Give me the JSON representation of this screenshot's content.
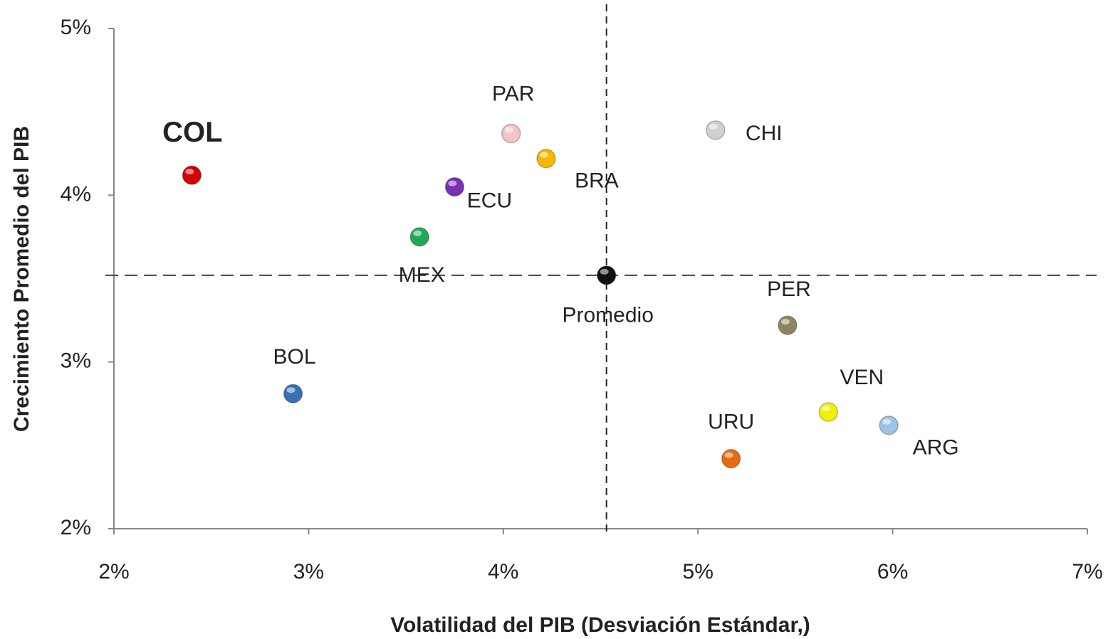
{
  "chart_data": {
    "type": "scatter",
    "xlabel": "Volatilidad del PIB (Desviación Estándar,)",
    "ylabel": "Crecimiento Promedio del PIB",
    "xlim": [
      2,
      7
    ],
    "ylim": [
      2,
      5
    ],
    "xticks": [
      {
        "value": 2,
        "label": "2%"
      },
      {
        "value": 3,
        "label": "3%"
      },
      {
        "value": 4,
        "label": "4%"
      },
      {
        "value": 5,
        "label": "5%"
      },
      {
        "value": 6,
        "label": "6%"
      },
      {
        "value": 7,
        "label": "7%"
      }
    ],
    "yticks": [
      {
        "value": 2,
        "label": "2%"
      },
      {
        "value": 3,
        "label": "3%"
      },
      {
        "value": 4,
        "label": "4%"
      },
      {
        "value": 5,
        "label": "5%"
      }
    ],
    "points": [
      {
        "label": "COL",
        "x": 2.4,
        "y": 4.12,
        "color": "#d40000"
      },
      {
        "label": "PAR",
        "x": 4.04,
        "y": 4.37,
        "color": "#f2c4c4"
      },
      {
        "label": "BRA",
        "x": 4.22,
        "y": 4.22,
        "color": "#f5b800"
      },
      {
        "label": "ECU",
        "x": 3.75,
        "y": 4.05,
        "color": "#7a2fb0"
      },
      {
        "label": "MEX",
        "x": 3.57,
        "y": 3.75,
        "color": "#1faa55"
      },
      {
        "label": "Promedio",
        "x": 4.53,
        "y": 3.52,
        "color": "#111111"
      },
      {
        "label": "CHI",
        "x": 5.09,
        "y": 4.39,
        "color": "#d0d0d0"
      },
      {
        "label": "PER",
        "x": 5.46,
        "y": 3.22,
        "color": "#8c8560"
      },
      {
        "label": "BOL",
        "x": 2.92,
        "y": 2.81,
        "color": "#3a6fb8"
      },
      {
        "label": "VEN",
        "x": 5.67,
        "y": 2.7,
        "color": "#f0f000"
      },
      {
        "label": "ARG",
        "x": 5.98,
        "y": 2.62,
        "color": "#9fc2e8"
      },
      {
        "label": "URU",
        "x": 5.17,
        "y": 2.42,
        "color": "#e86a10"
      }
    ]
  }
}
